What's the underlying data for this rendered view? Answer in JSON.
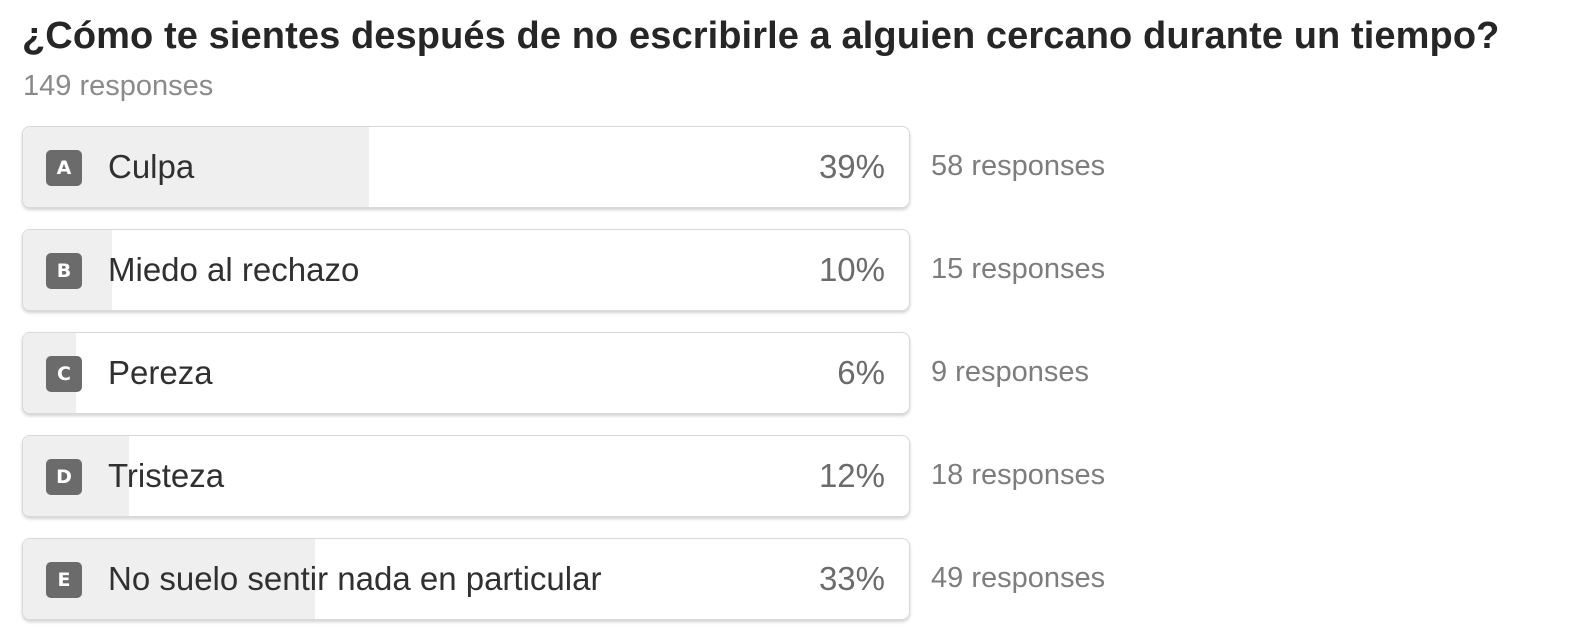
{
  "poll": {
    "question": "¿Cómo te sientes después de no escribirle a alguien cercano durante un tiempo?",
    "total_responses": "149 responses"
  },
  "chart_data": {
    "type": "bar",
    "orientation": "horizontal",
    "title": "¿Cómo te sientes después de no escribirle a alguien cercano durante un tiempo?",
    "subtitle": "149 responses",
    "categories": [
      "Culpa",
      "Miedo al rechazo",
      "Pereza",
      "Tristeza",
      "No suelo sentir nada en particular"
    ],
    "values": [
      39,
      10,
      6,
      12,
      33
    ],
    "unit": "%",
    "xlim": [
      0,
      100
    ],
    "grid": false,
    "options": [
      {
        "letter": "A",
        "label": "Culpa",
        "percent": 39,
        "percent_label": "39%",
        "count": 58,
        "count_label": "58 responses"
      },
      {
        "letter": "B",
        "label": "Miedo al rechazo",
        "percent": 10,
        "percent_label": "10%",
        "count": 15,
        "count_label": "15 responses"
      },
      {
        "letter": "C",
        "label": "Pereza",
        "percent": 6,
        "percent_label": "6%",
        "count": 9,
        "count_label": "9 responses"
      },
      {
        "letter": "D",
        "label": "Tristeza",
        "percent": 12,
        "percent_label": "12%",
        "count": 18,
        "count_label": "18 responses"
      },
      {
        "letter": "E",
        "label": "No suelo sentir nada en particular",
        "percent": 33,
        "percent_label": "33%",
        "count": 49,
        "count_label": "49 responses"
      }
    ]
  },
  "colors": {
    "fill": "#efefef",
    "badge": "#6b6b6b",
    "text": "#303030",
    "muted": "#7d7d7d",
    "border": "#d9d9d9"
  }
}
